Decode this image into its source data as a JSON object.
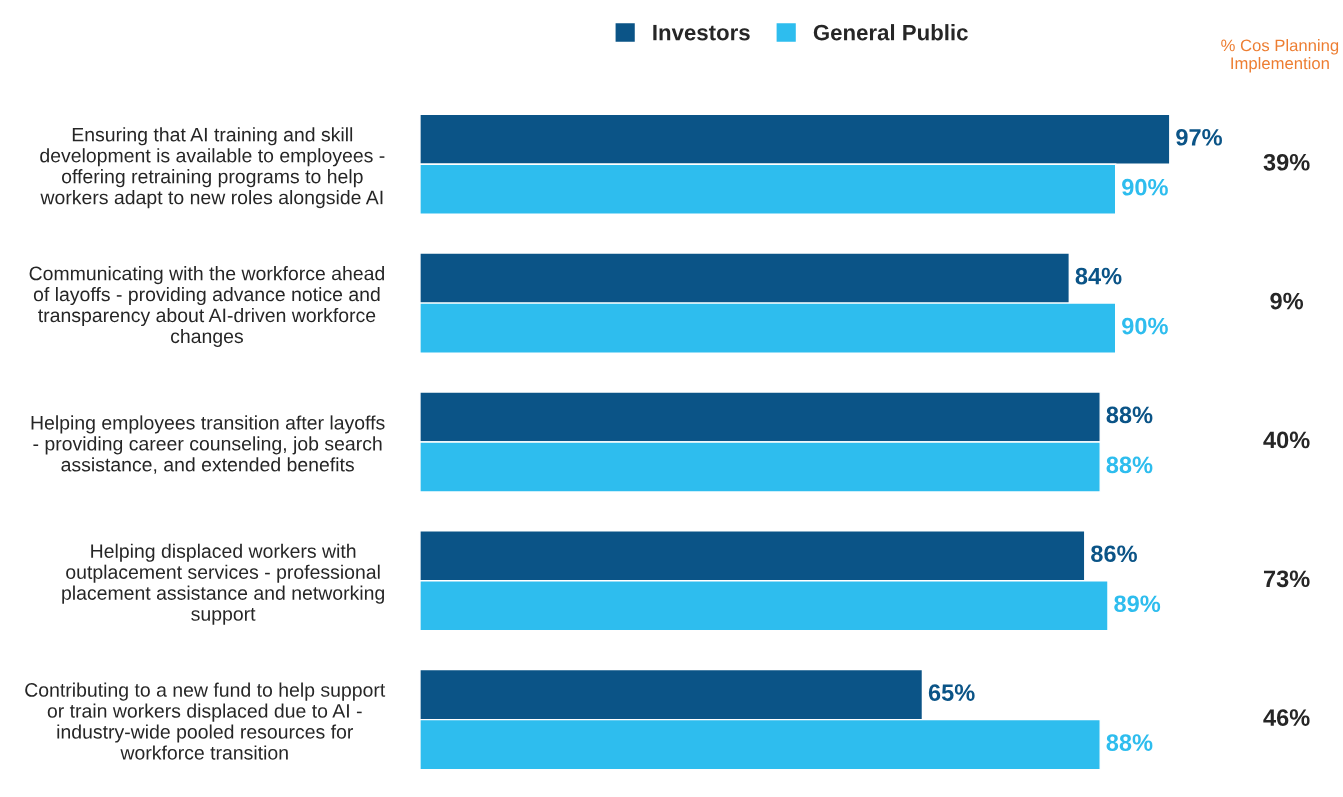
{
  "chart_data": {
    "type": "bar",
    "orientation": "horizontal",
    "legend": "top",
    "categories": [
      "Ensuring that AI training and skill\ndevelopment is available to employees -\noffering retraining programs to help\nworkers adapt to new roles alongside AI",
      "Communicating with the workforce ahead\nof layoffs - providing advance notice and\ntransparency about AI-driven workforce\nchanges",
      "Helping employees transition after layoffs\n- providing career counseling, job search\nassistance, and extended benefits",
      "Helping displaced workers with\noutplacement services - professional\nplacement assistance and networking\nsupport",
      "Contributing to a new fund to help support\nor train workers displaced due to AI -\nindustry-wide pooled resources for\nworkforce transition"
    ],
    "series": [
      {
        "name": "Investors",
        "color": "#0b5487",
        "values": [
          97,
          84,
          88,
          86,
          65
        ],
        "value_labels": [
          "97%",
          "84%",
          "88%",
          "86%",
          "65%"
        ]
      },
      {
        "name": "General Public",
        "color": "#2ebdee",
        "values": [
          90,
          90,
          88,
          89,
          88
        ],
        "value_labels": [
          "90%",
          "90%",
          "88%",
          "89%",
          "88%"
        ]
      }
    ],
    "annotations": [
      "% Cos Planning\nImplemention",
      "39%",
      "9%",
      "40%",
      "73%",
      "46%"
    ]
  }
}
